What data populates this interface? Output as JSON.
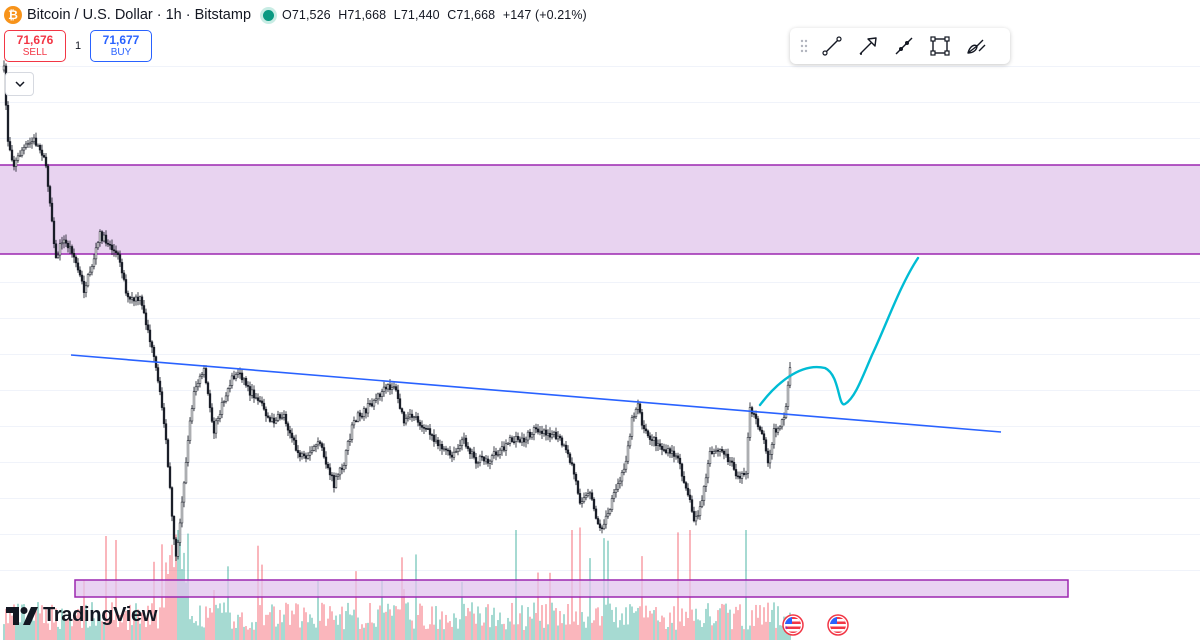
{
  "header": {
    "coin_glyph": "₿",
    "title": "Bitcoin / U.S. Dollar · 1h · Bitstamp",
    "ohlc": {
      "open": "O71,526",
      "high": "H71,668",
      "low": "L71,440",
      "close": "C71,668",
      "change": "+147 (+0.21%)"
    }
  },
  "trade": {
    "sell_price": "71,676",
    "sell_label": "SELL",
    "quantity": "1",
    "buy_price": "71,677",
    "buy_label": "BUY"
  },
  "toolbar": {
    "tools": [
      "drag-handle-icon",
      "trend-line-icon",
      "arrow-icon",
      "ray-icon",
      "rectangle-icon",
      "brush-icon"
    ]
  },
  "logo": {
    "text": "TradingView"
  },
  "colors": {
    "zone_fill": "#e8d3f0",
    "zone_border": "#9c27b0",
    "trendline": "#2962ff",
    "projection": "#00bcd4",
    "candle_up": "#089981",
    "candle_down": "#f23645",
    "candle_body": "#131722"
  },
  "chart_data": {
    "type": "candlestick",
    "symbol": "Bitcoin / U.S. Dollar",
    "interval": "1h",
    "exchange": "Bitstamp",
    "last": {
      "open": 71526,
      "high": 71668,
      "low": 71440,
      "close": 71668,
      "change": 147,
      "change_pct": 0.21
    },
    "grid": true,
    "annotations": [
      {
        "type": "rectangle-zone",
        "role": "upper resistance zone"
      },
      {
        "type": "trendline",
        "role": "descending trendline"
      },
      {
        "type": "freehand-projection",
        "role": "bullish projection path"
      },
      {
        "type": "rectangle-zone",
        "role": "volume highlight zone"
      }
    ]
  }
}
